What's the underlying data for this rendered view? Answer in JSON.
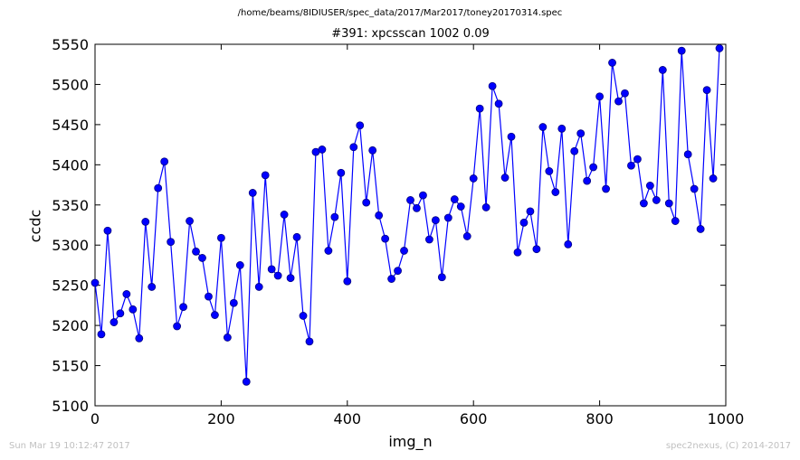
{
  "header": {
    "file_path": "/home/beams/8IDIUSER/spec_data/2017/Mar2017/toney20170314.spec"
  },
  "footer": {
    "timestamp": "Sun Mar 19 10:12:47 2017",
    "credit": "spec2nexus, (C) 2014-2017"
  },
  "colors": {
    "line": "#0000ff",
    "marker_fill": "#0000ff",
    "marker_edge": "#000080",
    "axes": "#000000"
  },
  "chart_data": {
    "type": "line",
    "title": "#391: xpcsscan 1002 0.09",
    "xlabel": "img_n",
    "ylabel": "ccdc",
    "xlim": [
      0,
      1000
    ],
    "ylim": [
      5100,
      5550
    ],
    "xticks": [
      0,
      200,
      400,
      600,
      800,
      1000
    ],
    "yticks": [
      5100,
      5150,
      5200,
      5250,
      5300,
      5350,
      5400,
      5450,
      5500,
      5550
    ],
    "grid": false,
    "markers": true,
    "series": [
      {
        "x": [
          0,
          10,
          20,
          30,
          40,
          50,
          60,
          70,
          80,
          90,
          100,
          110,
          120,
          130,
          140,
          150,
          160,
          170,
          180,
          190,
          200,
          210,
          220,
          230,
          240,
          250,
          260,
          270,
          280,
          290,
          300,
          310,
          320,
          330,
          340,
          350,
          360,
          370,
          380,
          390,
          400,
          410,
          420,
          430,
          440,
          450,
          460,
          470,
          480,
          490,
          500,
          510,
          520,
          530,
          540,
          550,
          560,
          570,
          580,
          590,
          600,
          610,
          620,
          630,
          640,
          650,
          660,
          670,
          680,
          690,
          700,
          710,
          720,
          730,
          740,
          750,
          760,
          770,
          780,
          790,
          800,
          810,
          820,
          830,
          840,
          850,
          860,
          870,
          880,
          890,
          900,
          910,
          920,
          930,
          940,
          950,
          960,
          970,
          980,
          990
        ],
        "values": [
          5253,
          5189,
          5318,
          5204,
          5215,
          5239,
          5220,
          5184,
          5329,
          5248,
          5371,
          5404,
          5304,
          5199,
          5223,
          5330,
          5292,
          5284,
          5236,
          5213,
          5309,
          5185,
          5228,
          5275,
          5130,
          5365,
          5248,
          5387,
          5270,
          5262,
          5338,
          5259,
          5310,
          5212,
          5180,
          5416,
          5419,
          5293,
          5335,
          5390,
          5255,
          5422,
          5449,
          5353,
          5418,
          5337,
          5308,
          5258,
          5268,
          5293,
          5356,
          5346,
          5362,
          5307,
          5331,
          5260,
          5334,
          5357,
          5348,
          5311,
          5383,
          5470,
          5347,
          5498,
          5476,
          5384,
          5435,
          5291,
          5328,
          5342,
          5295,
          5447,
          5392,
          5366,
          5445,
          5301,
          5417,
          5439,
          5380,
          5397,
          5485,
          5370,
          5527,
          5479,
          5489,
          5399,
          5407,
          5352,
          5374,
          5356,
          5518,
          5352,
          5330,
          5542,
          5413,
          5370,
          5320,
          5493,
          5383,
          5545
        ]
      }
    ]
  }
}
